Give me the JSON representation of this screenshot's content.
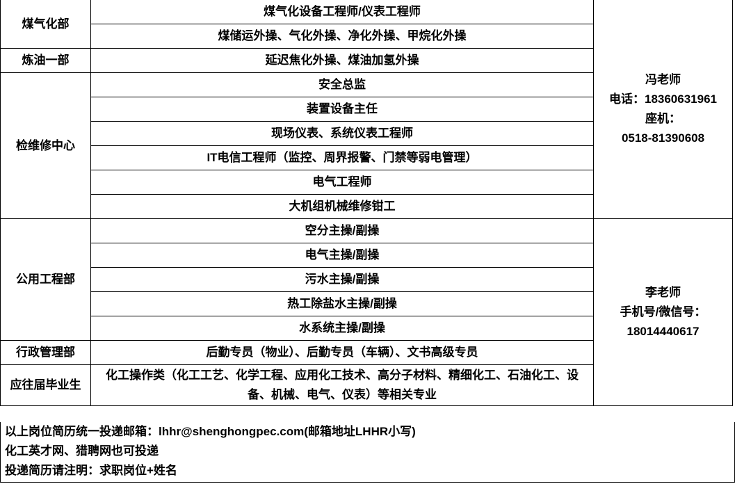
{
  "table": {
    "departments": [
      {
        "name": "煤气化部",
        "positions": [
          "煤气化设备工程师/仪表工程师",
          "煤储运外操、气化外操、净化外操、甲烷化外操"
        ]
      },
      {
        "name": "炼油一部",
        "positions": [
          "延迟焦化外操、煤油加氢外操"
        ]
      },
      {
        "name": "检维修中心",
        "positions": [
          "安全总监",
          "装置设备主任",
          "现场仪表、系统仪表工程师",
          "IT电信工程师（监控、周界报警、门禁等弱电管理）",
          "电气工程师",
          "大机组机械维修钳工"
        ]
      },
      {
        "name": "公用工程部",
        "positions": [
          "空分主操/副操",
          "电气主操/副操",
          "污水主操/副操",
          "热工除盐水主操/副操",
          "水系统主操/副操"
        ]
      },
      {
        "name": "行政管理部",
        "positions": [
          "后勤专员（物业）、后勤专员（车辆）、文书高级专员"
        ]
      },
      {
        "name": "应往届毕业生",
        "positions": [
          "化工操作类（化工工艺、化学工程、应用化工技术、高分子材料、精细化工、石油化工、设备、机械、电气、仪表）等相关专业"
        ]
      }
    ],
    "contacts": [
      {
        "name": "冯老师",
        "line1": "电话：18360631961",
        "line2": "座机：",
        "line3": "0518-81390608"
      },
      {
        "name": "李老师",
        "line1": "手机号/微信号：",
        "line2": "18014440617"
      }
    ]
  },
  "footer": {
    "line1": "以上岗位简历统一投递邮箱：lhhr@shenghongpec.com(邮箱地址LHHR小写)",
    "line2": "化工英才网、猎聘网也可投递",
    "line3": "投递简历请注明：求职岗位+姓名"
  }
}
